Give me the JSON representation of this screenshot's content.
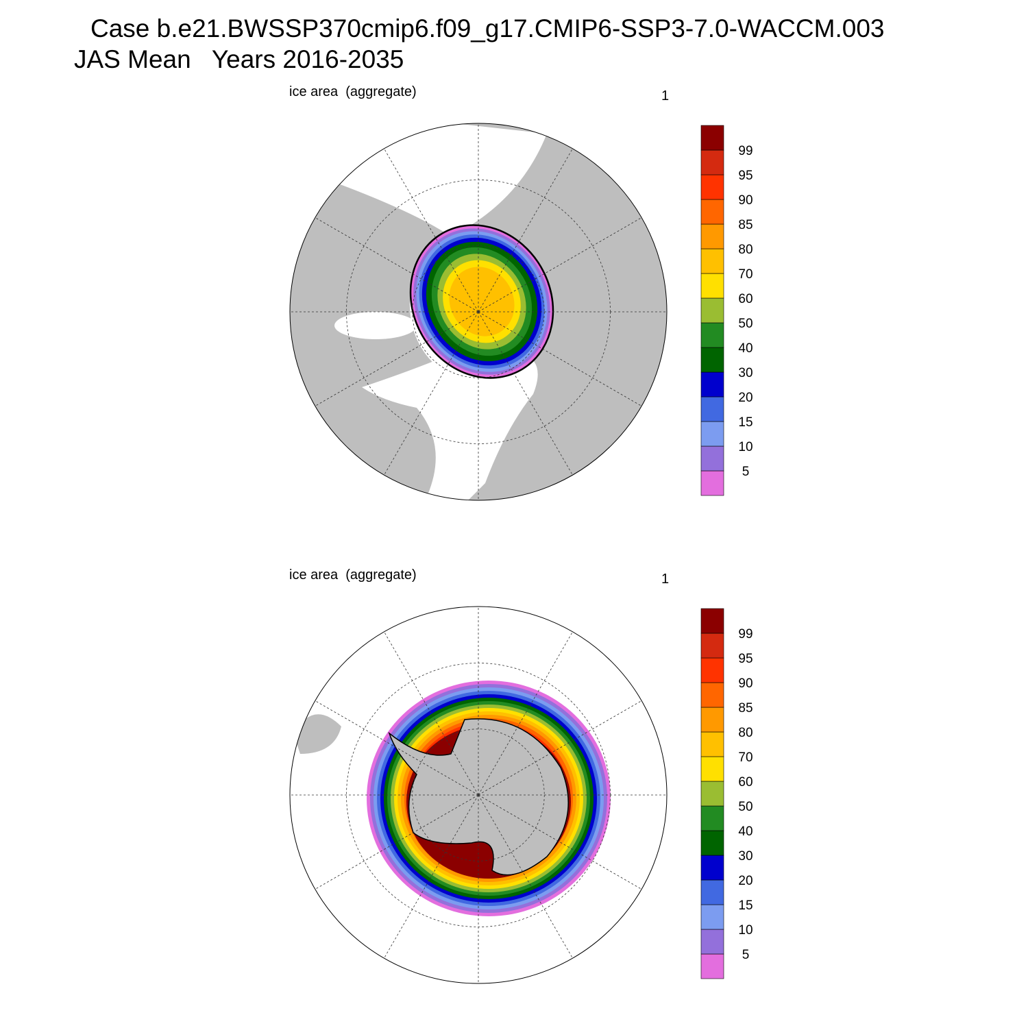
{
  "title": [
    "Case b.e21.BWSSP370cmip6.f09_g17.CMIP6-SSP3-7.0-WACCM.003",
    "JAS Mean   Years 2016-2035"
  ],
  "panels": [
    {
      "label": "ice area  (aggregate)",
      "right_label": "1",
      "hemisphere": "north"
    },
    {
      "label": "ice area  (aggregate)",
      "right_label": "1",
      "hemisphere": "south"
    }
  ],
  "colorbar": {
    "labels": [
      5,
      10,
      15,
      20,
      30,
      40,
      50,
      60,
      70,
      80,
      85,
      90,
      95,
      99
    ],
    "colors": [
      "#e36ede",
      "#9370db",
      "#7c9cf0",
      "#4169e1",
      "#0000cd",
      "#006400",
      "#228b22",
      "#9abd32",
      "#ffe000",
      "#ffc000",
      "#ff9900",
      "#ff6600",
      "#ff3300",
      "#d42a10",
      "#8b0000"
    ]
  }
}
